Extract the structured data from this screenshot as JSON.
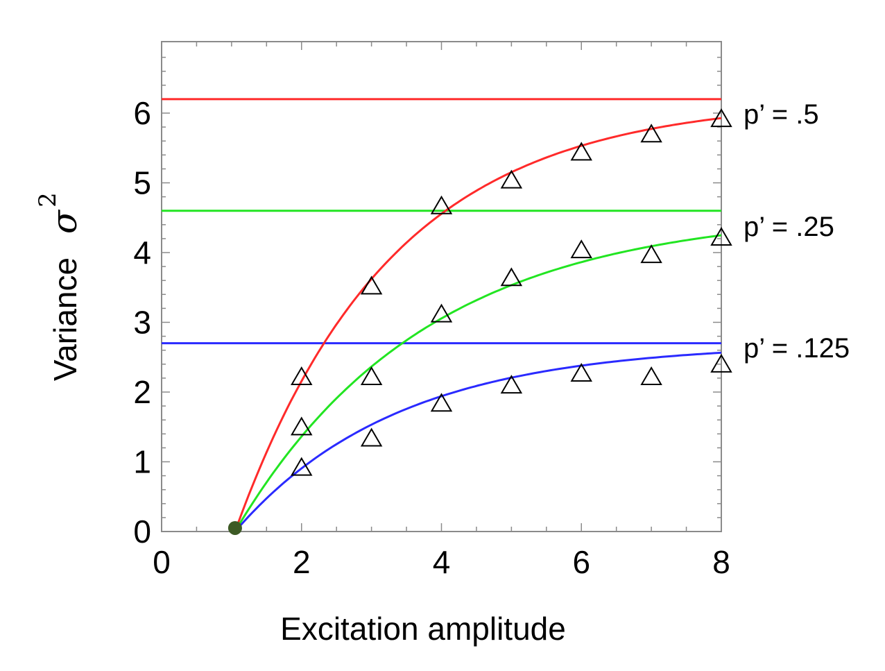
{
  "chart_data": {
    "type": "scatter",
    "title": "",
    "xlabel": "Excitation amplitude",
    "ylabel": "Variance",
    "ylabel_symbol": "σ",
    "ylabel_exponent": "2",
    "xlim": [
      0,
      8
    ],
    "ylim": [
      0,
      7
    ],
    "x_ticks": [
      "0",
      "2",
      "4",
      "6",
      "8"
    ],
    "y_ticks": [
      "0",
      "1",
      "2",
      "3",
      "4",
      "5",
      "6"
    ],
    "grid": false,
    "series": [
      {
        "label": "p’ = .5",
        "color": "#ff2a2a",
        "asymptote": 6.2,
        "x": [
          2,
          3,
          4,
          5,
          6,
          7,
          8
        ],
        "y": [
          2.2,
          3.5,
          4.65,
          5.02,
          5.42,
          5.68,
          5.9
        ]
      },
      {
        "label": "p’ = .25",
        "color": "#22e522",
        "asymptote": 4.6,
        "x": [
          2,
          3,
          4,
          5,
          6,
          7,
          8
        ],
        "y": [
          1.48,
          2.2,
          3.1,
          3.62,
          4.02,
          3.95,
          4.2
        ]
      },
      {
        "label": "p’ = .125",
        "color": "#2a2aff",
        "asymptote": 2.7,
        "x": [
          2,
          3,
          4,
          5,
          6,
          7,
          8
        ],
        "y": [
          0.9,
          1.32,
          1.82,
          2.08,
          2.25,
          2.2,
          2.38
        ]
      }
    ],
    "origin_point": {
      "x": 1.05,
      "y": 0.05,
      "color": "#3d5a25"
    }
  }
}
